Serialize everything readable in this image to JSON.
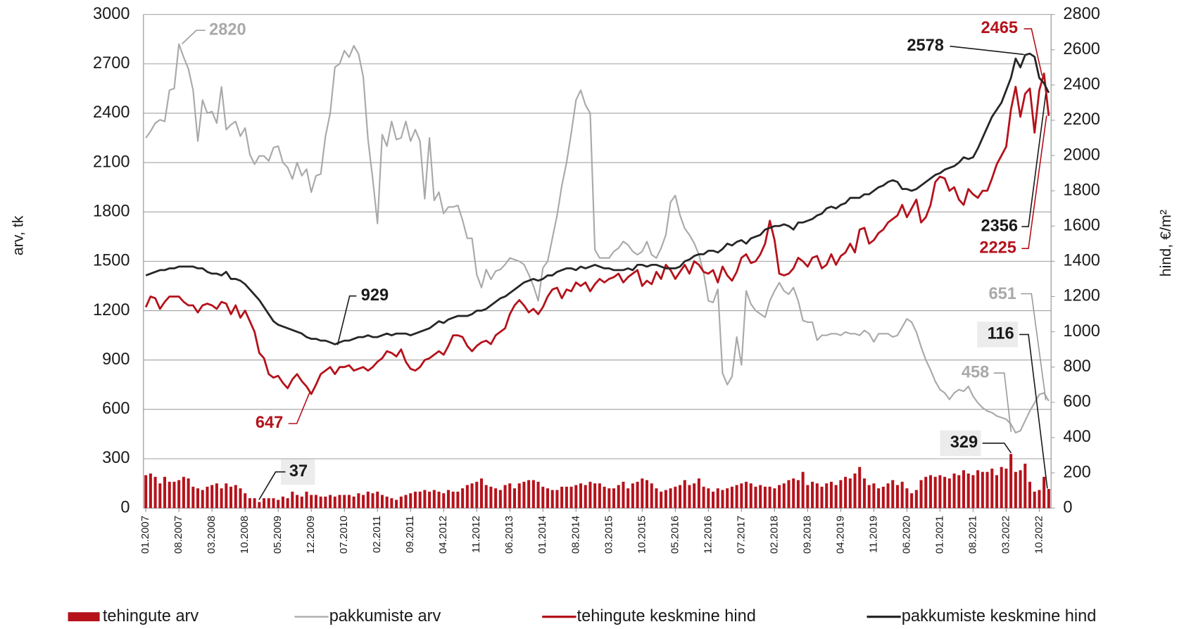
{
  "chart_data": {
    "type": "line",
    "ylabel": "arv, tk",
    "y2label": "hind, €/m²",
    "ylim": [
      0,
      3000
    ],
    "yticks": [
      0,
      300,
      600,
      900,
      1200,
      1500,
      1800,
      2100,
      2400,
      2700,
      3000
    ],
    "y2lim": [
      0,
      2800
    ],
    "y2ticks": [
      0,
      200,
      400,
      600,
      800,
      1000,
      1200,
      1400,
      1600,
      1800,
      2000,
      2200,
      2400,
      2600,
      2800
    ],
    "grid": true,
    "legend": "bottom",
    "categories": [
      "01.2007",
      null,
      null,
      null,
      null,
      null,
      null,
      "08.2007",
      null,
      null,
      null,
      null,
      null,
      null,
      "03.2008",
      null,
      null,
      null,
      null,
      null,
      null,
      "10.2008",
      null,
      null,
      null,
      null,
      null,
      null,
      "05.2009",
      null,
      null,
      null,
      null,
      null,
      null,
      "12.2009",
      null,
      null,
      null,
      null,
      null,
      null,
      "07.2010",
      null,
      null,
      null,
      null,
      null,
      null,
      "02.2011",
      null,
      null,
      null,
      null,
      null,
      null,
      "09.2011",
      null,
      null,
      null,
      null,
      null,
      null,
      "04.2012",
      null,
      null,
      null,
      null,
      null,
      null,
      "11.2012",
      null,
      null,
      null,
      null,
      null,
      null,
      "06.2013",
      null,
      null,
      null,
      null,
      null,
      null,
      "01.2014",
      null,
      null,
      null,
      null,
      null,
      null,
      "08.2014",
      null,
      null,
      null,
      null,
      null,
      null,
      "03.2015",
      null,
      null,
      null,
      null,
      null,
      null,
      "10.2015",
      null,
      null,
      null,
      null,
      null,
      null,
      "05.2016",
      null,
      null,
      null,
      null,
      null,
      null,
      "12.2016",
      null,
      null,
      null,
      null,
      null,
      null,
      "07.2017",
      null,
      null,
      null,
      null,
      null,
      null,
      "02.2018",
      null,
      null,
      null,
      null,
      null,
      null,
      "09.2018",
      null,
      null,
      null,
      null,
      null,
      null,
      "04.2019",
      null,
      null,
      null,
      null,
      null,
      null,
      "11.2019",
      null,
      null,
      null,
      null,
      null,
      null,
      "06.2020",
      null,
      null,
      null,
      null,
      null,
      null,
      "01.2021",
      null,
      null,
      null,
      null,
      null,
      null,
      "08.2021",
      null,
      null,
      null,
      null,
      null,
      null,
      "03.2022",
      null,
      null,
      null,
      null,
      null,
      null,
      "10.2022",
      null,
      null
    ],
    "series": [
      {
        "name": "tehingute arv",
        "type": "bar",
        "axis": "y",
        "color": "#b5121b",
        "values": [
          200,
          210,
          190,
          150,
          190,
          160,
          160,
          170,
          190,
          180,
          130,
          120,
          110,
          130,
          140,
          150,
          120,
          150,
          130,
          140,
          120,
          90,
          60,
          60,
          37,
          60,
          60,
          60,
          50,
          70,
          60,
          100,
          80,
          70,
          100,
          80,
          80,
          70,
          70,
          80,
          70,
          80,
          80,
          80,
          70,
          90,
          80,
          100,
          90,
          100,
          80,
          70,
          60,
          50,
          70,
          80,
          90,
          100,
          100,
          110,
          100,
          110,
          100,
          90,
          110,
          100,
          100,
          120,
          140,
          150,
          160,
          180,
          140,
          130,
          120,
          110,
          140,
          150,
          120,
          150,
          160,
          170,
          170,
          160,
          130,
          120,
          110,
          110,
          130,
          130,
          130,
          140,
          150,
          140,
          160,
          150,
          150,
          130,
          120,
          120,
          140,
          160,
          120,
          150,
          160,
          180,
          170,
          150,
          120,
          100,
          110,
          120,
          130,
          140,
          170,
          140,
          150,
          180,
          130,
          120,
          100,
          120,
          110,
          120,
          130,
          140,
          150,
          160,
          150,
          130,
          140,
          130,
          130,
          120,
          140,
          150,
          170,
          180,
          170,
          220,
          140,
          160,
          150,
          130,
          150,
          160,
          140,
          170,
          190,
          180,
          210,
          250,
          180,
          140,
          150,
          120,
          130,
          150,
          170,
          140,
          160,
          120,
          90,
          110,
          170,
          190,
          200,
          190,
          200,
          190,
          180,
          210,
          200,
          230,
          210,
          200,
          230,
          220,
          220,
          240,
          200,
          250,
          240,
          329,
          220,
          230,
          270,
          160,
          100,
          110,
          190,
          116
        ]
      },
      {
        "name": "pakkumiste arv",
        "type": "line",
        "axis": "y",
        "color": "#a9a9a9",
        "values": [
          2250,
          2290,
          2340,
          2360,
          2350,
          2540,
          2550,
          2820,
          2740,
          2670,
          2540,
          2230,
          2480,
          2400,
          2410,
          2340,
          2560,
          2300,
          2330,
          2350,
          2260,
          2310,
          2150,
          2090,
          2140,
          2140,
          2110,
          2190,
          2200,
          2100,
          2070,
          2000,
          2100,
          2020,
          2060,
          1920,
          2020,
          2030,
          2260,
          2400,
          2680,
          2700,
          2780,
          2740,
          2810,
          2760,
          2620,
          2240,
          2000,
          1730,
          2270,
          2200,
          2350,
          2240,
          2250,
          2350,
          2230,
          2300,
          2230,
          1880,
          2250,
          1870,
          1920,
          1790,
          1830,
          1830,
          1840,
          1750,
          1640,
          1640,
          1420,
          1340,
          1450,
          1390,
          1440,
          1450,
          1480,
          1520,
          1510,
          1500,
          1480,
          1420,
          1350,
          1260,
          1460,
          1500,
          1640,
          1780,
          1960,
          2100,
          2280,
          2480,
          2540,
          2450,
          2400,
          1570,
          1520,
          1520,
          1520,
          1560,
          1580,
          1620,
          1600,
          1560,
          1540,
          1560,
          1620,
          1540,
          1520,
          1580,
          1660,
          1860,
          1900,
          1780,
          1700,
          1660,
          1610,
          1540,
          1430,
          1260,
          1250,
          1330,
          820,
          750,
          800,
          1040,
          870,
          1320,
          1240,
          1200,
          1180,
          1160,
          1260,
          1320,
          1370,
          1320,
          1300,
          1340,
          1260,
          1140,
          1130,
          1130,
          1020,
          1050,
          1050,
          1060,
          1060,
          1050,
          1070,
          1060,
          1060,
          1050,
          1080,
          1060,
          1010,
          1060,
          1060,
          1060,
          1040,
          1050,
          1100,
          1150,
          1130,
          1070,
          980,
          900,
          840,
          770,
          720,
          700,
          660,
          700,
          720,
          710,
          740,
          680,
          640,
          610,
          590,
          580,
          560,
          550,
          540,
          510,
          458,
          470,
          530,
          590,
          640,
          690,
          700,
          651
        ]
      },
      {
        "name": "tehingute keskmine hind",
        "type": "line",
        "axis": "y2",
        "color": "#b5121b",
        "values": [
          1140,
          1200,
          1190,
          1130,
          1170,
          1200,
          1200,
          1200,
          1170,
          1150,
          1150,
          1110,
          1150,
          1160,
          1150,
          1130,
          1170,
          1160,
          1100,
          1150,
          1080,
          1120,
          1060,
          1000,
          880,
          850,
          760,
          740,
          750,
          710,
          680,
          730,
          760,
          720,
          690,
          647,
          700,
          760,
          780,
          800,
          760,
          800,
          800,
          810,
          780,
          790,
          800,
          780,
          800,
          830,
          850,
          890,
          880,
          860,
          900,
          830,
          790,
          780,
          800,
          840,
          850,
          870,
          890,
          870,
          920,
          980,
          980,
          970,
          920,
          890,
          920,
          940,
          950,
          930,
          980,
          1000,
          1020,
          1100,
          1150,
          1180,
          1150,
          1110,
          1130,
          1100,
          1140,
          1200,
          1240,
          1250,
          1190,
          1240,
          1230,
          1280,
          1260,
          1280,
          1230,
          1270,
          1300,
          1280,
          1300,
          1310,
          1330,
          1280,
          1310,
          1330,
          1350,
          1260,
          1290,
          1270,
          1340,
          1300,
          1380,
          1350,
          1300,
          1340,
          1380,
          1330,
          1400,
          1380,
          1340,
          1330,
          1350,
          1280,
          1370,
          1320,
          1290,
          1340,
          1420,
          1440,
          1390,
          1400,
          1440,
          1500,
          1630,
          1520,
          1330,
          1320,
          1330,
          1360,
          1420,
          1400,
          1370,
          1420,
          1430,
          1360,
          1380,
          1440,
          1380,
          1430,
          1450,
          1500,
          1450,
          1580,
          1590,
          1500,
          1520,
          1560,
          1580,
          1620,
          1640,
          1660,
          1720,
          1650,
          1700,
          1750,
          1620,
          1650,
          1720,
          1850,
          1880,
          1870,
          1800,
          1820,
          1750,
          1720,
          1810,
          1780,
          1760,
          1800,
          1800,
          1870,
          1950,
          2000,
          2050,
          2260,
          2390,
          2220,
          2350,
          2380,
          2130,
          2370,
          2465,
          2225
        ]
      },
      {
        "name": "pakkumiste keskmine hind",
        "type": "line",
        "axis": "y2",
        "color": "#262626",
        "values": [
          1320,
          1330,
          1340,
          1350,
          1350,
          1360,
          1360,
          1370,
          1370,
          1370,
          1370,
          1360,
          1360,
          1340,
          1330,
          1330,
          1320,
          1340,
          1300,
          1300,
          1290,
          1270,
          1240,
          1210,
          1180,
          1140,
          1100,
          1060,
          1040,
          1030,
          1020,
          1010,
          1000,
          990,
          970,
          960,
          960,
          950,
          950,
          940,
          929,
          940,
          950,
          950,
          960,
          970,
          970,
          980,
          970,
          970,
          980,
          990,
          980,
          990,
          990,
          990,
          980,
          990,
          1000,
          1010,
          1020,
          1040,
          1060,
          1050,
          1070,
          1080,
          1090,
          1090,
          1090,
          1100,
          1120,
          1120,
          1130,
          1150,
          1170,
          1190,
          1200,
          1220,
          1240,
          1260,
          1280,
          1290,
          1300,
          1290,
          1300,
          1320,
          1320,
          1340,
          1350,
          1360,
          1360,
          1350,
          1370,
          1360,
          1370,
          1380,
          1370,
          1360,
          1360,
          1350,
          1350,
          1350,
          1360,
          1350,
          1380,
          1380,
          1370,
          1380,
          1380,
          1370,
          1360,
          1360,
          1360,
          1370,
          1400,
          1410,
          1430,
          1440,
          1440,
          1460,
          1460,
          1450,
          1470,
          1500,
          1490,
          1510,
          1520,
          1500,
          1530,
          1540,
          1550,
          1580,
          1590,
          1600,
          1600,
          1610,
          1600,
          1580,
          1620,
          1620,
          1630,
          1640,
          1660,
          1670,
          1700,
          1710,
          1700,
          1720,
          1730,
          1760,
          1760,
          1760,
          1780,
          1780,
          1800,
          1820,
          1830,
          1850,
          1860,
          1850,
          1810,
          1810,
          1800,
          1810,
          1830,
          1850,
          1870,
          1890,
          1900,
          1920,
          1930,
          1940,
          1960,
          1990,
          1980,
          1990,
          2040,
          2100,
          2160,
          2220,
          2260,
          2300,
          2370,
          2440,
          2550,
          2500,
          2570,
          2578,
          2560,
          2440,
          2410,
          2356
        ]
      }
    ],
    "annotations": [
      "2820",
      "929",
      "647",
      "37",
      "2578",
      "2465",
      "2356",
      "2225",
      "651",
      "116",
      "458",
      "329"
    ]
  }
}
